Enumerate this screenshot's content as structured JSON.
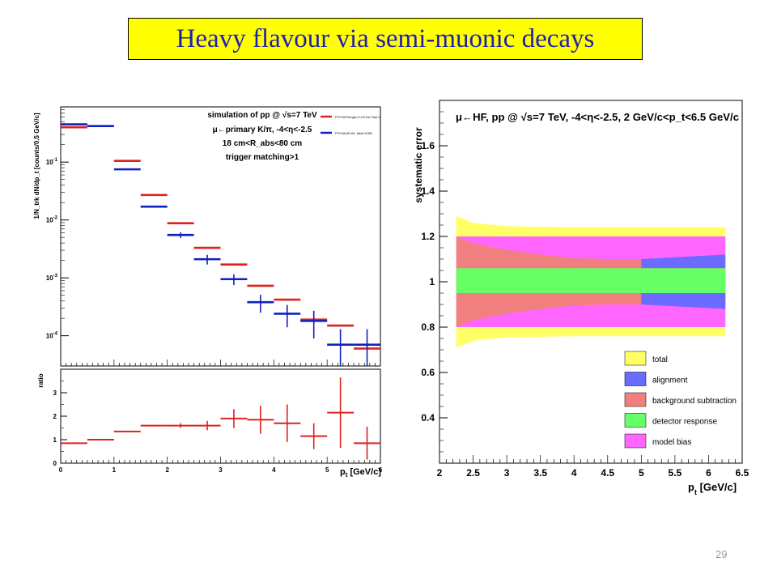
{
  "slide": {
    "title": "Heavy flavour via semi-muonic decays",
    "page_number": "29"
  },
  "chart_data": [
    {
      "type": "scatter",
      "panel": "spectrum",
      "ylabel": "1/N_trk dN/dp_t [counts/0.5 GeV/c]",
      "xlabel": "p_t [GeV/c]",
      "y_scale": "log",
      "xlim": [
        0,
        6
      ],
      "ylim": [
        3e-05,
        0.9
      ],
      "x_ticks": [
        "0",
        "1",
        "2",
        "3",
        "4",
        "5",
        "6"
      ],
      "y_ticks": [
        {
          "value": 0.1,
          "label": "10^-1"
        },
        {
          "value": 0.01,
          "label": "10^-2"
        },
        {
          "value": 0.001,
          "label": "10^-3"
        },
        {
          "value": 0.0001,
          "label": "10^-4"
        }
      ],
      "annotations": [
        "simulation of pp @ √s=7 TeV",
        "μ←primary K/π, -4<η<-2.5",
        "18 cm<R_abs<80 cm",
        "trigger matching>1"
      ],
      "legend_position": "top-right",
      "series": [
        {
          "name": "PYTHIA Perugia-0 LHC10c Pass 2",
          "color": "#e02020",
          "points": [
            {
              "x0": 0,
              "x1": 0.5,
              "y": 0.4
            },
            {
              "x0": 1,
              "x1": 1.5,
              "y": 0.105
            },
            {
              "x0": 1.5,
              "x1": 2,
              "y": 0.027
            },
            {
              "x0": 2,
              "x1": 2.5,
              "y": 0.0088
            },
            {
              "x0": 2.5,
              "x1": 3,
              "y": 0.0033
            },
            {
              "x0": 3,
              "x1": 3.5,
              "y": 0.0017
            },
            {
              "x0": 3.5,
              "x1": 4,
              "y": 0.00073
            },
            {
              "x0": 4,
              "x1": 4.5,
              "y": 0.00042
            },
            {
              "x0": 4.5,
              "x1": 5,
              "y": 0.00019
            },
            {
              "x0": 5,
              "x1": 5.5,
              "y": 0.00015
            },
            {
              "x0": 5.5,
              "x1": 6,
              "y": 6e-05
            }
          ]
        },
        {
          "name": "PYTHIA ATLAS, ideal OCDB",
          "color": "#1020c0",
          "points": [
            {
              "x0": 0,
              "x1": 0.5,
              "y": 0.45,
              "err": 0
            },
            {
              "x0": 0.5,
              "x1": 1,
              "y": 0.42,
              "err": 0
            },
            {
              "x0": 1,
              "x1": 1.5,
              "y": 0.075,
              "err": 0
            },
            {
              "x0": 1.5,
              "x1": 2,
              "y": 0.017,
              "err": 0
            },
            {
              "x0": 2,
              "x1": 2.5,
              "y": 0.0055,
              "err": 0.0006
            },
            {
              "x0": 2.5,
              "x1": 3,
              "y": 0.0021,
              "err": 0.0004
            },
            {
              "x0": 3,
              "x1": 3.5,
              "y": 0.00095,
              "err": 0.0002
            },
            {
              "x0": 3.5,
              "x1": 4,
              "y": 0.00038,
              "err": 0.00013
            },
            {
              "x0": 4,
              "x1": 4.5,
              "y": 0.00024,
              "err": 0.0001
            },
            {
              "x0": 4.5,
              "x1": 5,
              "y": 0.00018,
              "err": 9e-05
            },
            {
              "x0": 5,
              "x1": 5.5,
              "y": 7e-05,
              "err": 6e-05
            },
            {
              "x0": 5.5,
              "x1": 6,
              "y": 7e-05,
              "err": 6e-05
            }
          ]
        }
      ]
    },
    {
      "type": "scatter",
      "panel": "ratio",
      "ylabel": "ratio",
      "xlabel": "p_t [GeV/c]",
      "xlim": [
        0,
        6
      ],
      "ylim": [
        0,
        4
      ],
      "x_ticks": [
        "0",
        "1",
        "2",
        "3",
        "4",
        "5",
        "6"
      ],
      "y_ticks": [
        "0",
        "1",
        "2",
        "3"
      ],
      "color": "#e02020",
      "points": [
        {
          "x0": 0,
          "x1": 0.5,
          "y": 0.85,
          "err": 0
        },
        {
          "x0": 0.5,
          "x1": 1,
          "y": 1.0,
          "err": 0
        },
        {
          "x0": 1,
          "x1": 1.5,
          "y": 1.35,
          "err": 0
        },
        {
          "x0": 1.5,
          "x1": 2,
          "y": 1.6,
          "err": 0
        },
        {
          "x0": 2,
          "x1": 2.5,
          "y": 1.6,
          "err": 0.1
        },
        {
          "x0": 2.5,
          "x1": 3,
          "y": 1.6,
          "err": 0.2
        },
        {
          "x0": 3,
          "x1": 3.5,
          "y": 1.9,
          "err": 0.4
        },
        {
          "x0": 3.5,
          "x1": 4,
          "y": 1.85,
          "err": 0.6
        },
        {
          "x0": 4,
          "x1": 4.5,
          "y": 1.7,
          "err": 0.8
        },
        {
          "x0": 4.5,
          "x1": 5,
          "y": 1.15,
          "err": 0.55
        },
        {
          "x0": 5,
          "x1": 5.5,
          "y": 2.15,
          "err": 1.5
        },
        {
          "x0": 5.5,
          "x1": 6,
          "y": 0.85,
          "err": 0.7
        }
      ]
    },
    {
      "type": "area",
      "panel": "systematic-error",
      "title": "μ←HF, pp @ √s=7 TeV, -4<η<-2.5, 2 GeV/c<p_t<6.5 GeV/c",
      "ylabel": "systematic error",
      "xlabel": "p_t [GeV/c]",
      "xlim": [
        2,
        6.5
      ],
      "ylim": [
        0.2,
        1.8
      ],
      "x_ticks": [
        "2",
        "2.5",
        "3",
        "3.5",
        "4",
        "4.5",
        "5",
        "5.5",
        "6",
        "6.5"
      ],
      "y_ticks": [
        "0.4",
        "0.6",
        "0.8",
        "1",
        "1.2",
        "1.4",
        "1.6"
      ],
      "x_range_of_bands": [
        2.25,
        6.25
      ],
      "bands": [
        {
          "name": "total",
          "color": "#ffff66",
          "x": [
            2.25,
            2.5,
            3,
            4,
            5,
            6.25
          ],
          "upper": [
            1.29,
            1.26,
            1.245,
            1.24,
            1.24,
            1.24
          ],
          "lower": [
            0.71,
            0.74,
            0.755,
            0.76,
            0.76,
            0.76
          ]
        },
        {
          "name": "model bias",
          "color": "#ff66ff",
          "x": [
            2.25,
            6.25
          ],
          "upper": [
            1.2,
            1.2
          ],
          "lower": [
            0.8,
            0.8
          ]
        },
        {
          "name": "background subtraction",
          "color": "#f08080",
          "x": [
            2.25,
            2.5,
            3,
            3.5,
            4,
            4.5,
            5,
            6.25
          ],
          "outer_upper": [
            1.2,
            1.17,
            1.14,
            1.12,
            1.105,
            1.1,
            1.1,
            1.1
          ],
          "outer_lower": [
            0.8,
            0.83,
            0.86,
            0.88,
            0.895,
            0.9,
            0.9,
            0.9
          ]
        },
        {
          "name": "alignment",
          "color": "#6b6bff",
          "x": [
            5,
            6.25
          ],
          "upper": [
            1.1,
            1.12
          ],
          "lower": [
            0.9,
            0.88
          ]
        },
        {
          "name": "detector response",
          "color": "#66ff66",
          "x": [
            2.25,
            6.25
          ],
          "upper": [
            1.06,
            1.06
          ],
          "lower": [
            0.95,
            0.95
          ]
        }
      ],
      "legend": [
        "total",
        "alignment",
        "background subtraction",
        "detector response",
        "model bias"
      ],
      "legend_position": "bottom-right"
    }
  ]
}
